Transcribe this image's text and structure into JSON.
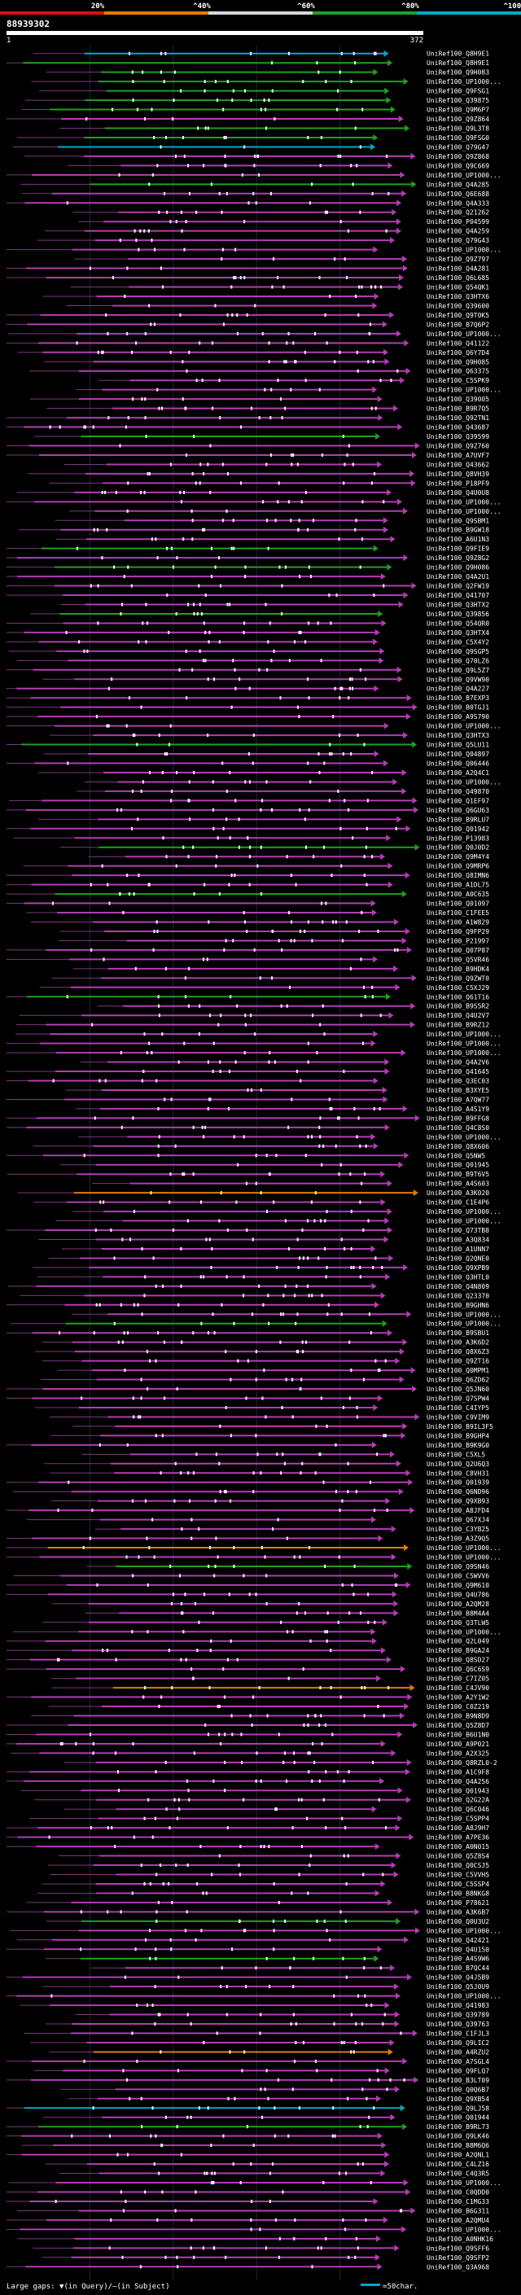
{
  "scale": {
    "labels": [
      "20%",
      "^40%",
      "^60%",
      "^80%",
      "^100%"
    ],
    "colors": [
      "#d21414",
      "#e07d00",
      "#d8d8d8",
      "#20a020",
      "#00aac8"
    ]
  },
  "query": {
    "title": "88939302",
    "start": "1",
    "end": "372"
  },
  "hits": [
    {
      "id": "UniRef100_Q8H9E1",
      "color": "#00aac8"
    },
    {
      "id": "UniRef100_Q8H9E1",
      "color": "#20a020"
    },
    {
      "id": "UniRef100_Q9H083",
      "color": "#20a020"
    },
    {
      "id": "UniRef100_UP1000...",
      "color": "#20a020"
    },
    {
      "id": "UniRef100_Q9FSG1",
      "color": "#20a020"
    },
    {
      "id": "UniRef100_Q39875",
      "color": "#20a020"
    },
    {
      "id": "UniRef100_Q9M6P7",
      "color": "#20a020"
    },
    {
      "id": "UniRef100_Q9Z864",
      "color": "#b43cb4"
    },
    {
      "id": "UniRef100_Q9L3T8",
      "color": "#20a020"
    },
    {
      "id": "UniRef100_Q9FSG0",
      "color": "#20a020"
    },
    {
      "id": "UniRef100_Q79G47",
      "color": "#00aac8"
    },
    {
      "id": "UniRef100_Q9Z868",
      "color": "#b43cb4"
    },
    {
      "id": "UniRef100_Q9C669",
      "color": "#b43cb4"
    },
    {
      "id": "UniRef100_UP1000...",
      "color": "#b43cb4"
    },
    {
      "id": "UniRef100_Q4A285",
      "color": "#20a020"
    },
    {
      "id": "UniRef100_Q6E688",
      "color": "#b43cb4"
    },
    {
      "id": "UniRef100_Q4A333",
      "color": "#b43cb4"
    },
    {
      "id": "UniRef100_Q21262",
      "color": "#b43cb4"
    },
    {
      "id": "UniRef100_P04599",
      "color": "#b43cb4"
    },
    {
      "id": "UniRef100_Q4A259",
      "color": "#b43cb4"
    },
    {
      "id": "UniRef100_Q79G43",
      "color": "#b43cb4"
    },
    {
      "id": "UniRef100_UP1000...",
      "color": "#b43cb4"
    },
    {
      "id": "UniRef100_Q9Z797",
      "color": "#b43cb4"
    },
    {
      "id": "UniRef100_Q4A281",
      "color": "#b43cb4"
    },
    {
      "id": "UniRef100_Q6L685",
      "color": "#b43cb4"
    },
    {
      "id": "UniRef100_Q54QK1",
      "color": "#b43cb4"
    },
    {
      "id": "UniRef100_Q3HTX6",
      "color": "#b43cb4"
    },
    {
      "id": "UniRef100_Q39600",
      "color": "#b43cb4"
    },
    {
      "id": "UniRef100_Q9T0K5",
      "color": "#b43cb4"
    },
    {
      "id": "UniRef100_B7Q6P2",
      "color": "#b43cb4"
    },
    {
      "id": "UniRef100_UP1000...",
      "color": "#b43cb4"
    },
    {
      "id": "UniRef100_Q41122",
      "color": "#b43cb4"
    },
    {
      "id": "UniRef100_Q6Y7D4",
      "color": "#b43cb4"
    },
    {
      "id": "UniRef100_Q9H085",
      "color": "#b43cb4"
    },
    {
      "id": "UniRef100_Q63375",
      "color": "#b43cb4"
    },
    {
      "id": "UniRef100_C5SPK9",
      "color": "#b43cb4"
    },
    {
      "id": "UniRef100_UP1000...",
      "color": "#b43cb4"
    },
    {
      "id": "UniRef100_Q39005",
      "color": "#b43cb4"
    },
    {
      "id": "UniRef100_B9R7Q5",
      "color": "#b43cb4"
    },
    {
      "id": "UniRef100_Q92TN1",
      "color": "#b43cb4"
    },
    {
      "id": "UniRef100_Q43687",
      "color": "#b43cb4"
    },
    {
      "id": "UniRef100_Q39599",
      "color": "#20a020"
    },
    {
      "id": "UniRef100_Q9Z760",
      "color": "#b43cb4"
    },
    {
      "id": "UniRef100_A7UVF7",
      "color": "#b43cb4"
    },
    {
      "id": "UniRef100_Q43662",
      "color": "#b43cb4"
    },
    {
      "id": "UniRef100_Q8VH39",
      "color": "#b43cb4"
    },
    {
      "id": "UniRef100_P18PF9",
      "color": "#b43cb4"
    },
    {
      "id": "UniRef100_Q4U0U8",
      "color": "#b43cb4"
    },
    {
      "id": "UniRef100_UP1000...",
      "color": "#b43cb4"
    },
    {
      "id": "UniRef100_UP1000...",
      "color": "#b43cb4"
    },
    {
      "id": "UniRef100_Q9SBM1",
      "color": "#b43cb4"
    },
    {
      "id": "UniRef100_B9GW18",
      "color": "#b43cb4"
    },
    {
      "id": "UniRef100_A6U1N3",
      "color": "#b43cb4"
    },
    {
      "id": "UniRef100_Q9FIE9",
      "color": "#20a020"
    },
    {
      "id": "UniRef100_Q9Z8G2",
      "color": "#b43cb4"
    },
    {
      "id": "UniRef100_Q9H086",
      "color": "#20a020"
    },
    {
      "id": "UniRef100_Q4A2U1",
      "color": "#b43cb4"
    },
    {
      "id": "UniRef100_Q2FW19",
      "color": "#b43cb4"
    },
    {
      "id": "UniRef100_Q41707",
      "color": "#b43cb4"
    },
    {
      "id": "UniRef100_Q3HTX2",
      "color": "#b43cb4"
    },
    {
      "id": "UniRef100_Q39856",
      "color": "#20a020"
    },
    {
      "id": "UniRef100_Q54QR0",
      "color": "#b43cb4"
    },
    {
      "id": "UniRef100_Q3HTX4",
      "color": "#b43cb4"
    },
    {
      "id": "UniRef100_C5X4Y2",
      "color": "#b43cb4"
    },
    {
      "id": "UniRef100_Q9SGP5",
      "color": "#b43cb4"
    },
    {
      "id": "UniRef100_Q70LZ6",
      "color": "#b43cb4"
    },
    {
      "id": "UniRef100_Q9L5Z7",
      "color": "#b43cb4"
    },
    {
      "id": "UniRef100_Q9VW90",
      "color": "#b43cb4"
    },
    {
      "id": "UniRef100_Q4A227",
      "color": "#b43cb4"
    },
    {
      "id": "UniRef100_B7EXP3",
      "color": "#b43cb4"
    },
    {
      "id": "UniRef100_B0TGJ1",
      "color": "#b43cb4"
    },
    {
      "id": "UniRef100_A9S790",
      "color": "#b43cb4"
    },
    {
      "id": "UniRef100_UP1000...",
      "color": "#b43cb4"
    },
    {
      "id": "UniRef100_Q3HTX3",
      "color": "#b43cb4"
    },
    {
      "id": "UniRef100_Q5LU11",
      "color": "#20a020"
    },
    {
      "id": "UniRef100_Q04897",
      "color": "#b43cb4"
    },
    {
      "id": "UniRef100_Q06446",
      "color": "#b43cb4"
    },
    {
      "id": "UniRef100_A2Q4C1",
      "color": "#b43cb4"
    },
    {
      "id": "UniRef100_UP1000...",
      "color": "#b43cb4"
    },
    {
      "id": "UniRef100_Q49870",
      "color": "#b43cb4"
    },
    {
      "id": "UniRef100_Q1EF97",
      "color": "#b43cb4"
    },
    {
      "id": "UniRef100_Q6GU63",
      "color": "#b43cb4"
    },
    {
      "id": "UniRef100_B9RLU7",
      "color": "#b43cb4"
    },
    {
      "id": "UniRef100_Q01942",
      "color": "#b43cb4"
    },
    {
      "id": "UniRef100_P13983",
      "color": "#b43cb4"
    },
    {
      "id": "UniRef100_Q0J0D2",
      "color": "#20a020"
    },
    {
      "id": "UniRef100_Q9M4Y4",
      "color": "#b43cb4"
    },
    {
      "id": "UniRef100_Q9MRP6",
      "color": "#b43cb4"
    },
    {
      "id": "UniRef100_Q8IMN6",
      "color": "#b43cb4"
    },
    {
      "id": "UniRef100_A1DL75",
      "color": "#b43cb4"
    },
    {
      "id": "UniRef100_A0C635",
      "color": "#20a020"
    },
    {
      "id": "UniRef100_Q01097",
      "color": "#b43cb4"
    },
    {
      "id": "UniRef100_C1FEE5",
      "color": "#b43cb4"
    },
    {
      "id": "UniRef100_A1W829",
      "color": "#b43cb4"
    },
    {
      "id": "UniRef100_Q9FP29",
      "color": "#b43cb4"
    },
    {
      "id": "UniRef100_P21997",
      "color": "#b43cb4"
    },
    {
      "id": "UniRef100_Q07P87",
      "color": "#b43cb4"
    },
    {
      "id": "UniRef100_Q5VR46",
      "color": "#b43cb4"
    },
    {
      "id": "UniRef100_B9HDK4",
      "color": "#b43cb4"
    },
    {
      "id": "UniRef100_Q9ZWT0",
      "color": "#b43cb4"
    },
    {
      "id": "UniRef100_C5XJ29",
      "color": "#b43cb4"
    },
    {
      "id": "UniRef100_Q61T16",
      "color": "#20a020"
    },
    {
      "id": "UniRef100_B9S5R2",
      "color": "#b43cb4"
    },
    {
      "id": "UniRef100_Q4U2V7",
      "color": "#b43cb4"
    },
    {
      "id": "UniRef100_B9RZ12",
      "color": "#b43cb4"
    },
    {
      "id": "UniRef100_UP1000...",
      "color": "#b43cb4"
    },
    {
      "id": "UniRef100_UP1000...",
      "color": "#b43cb4"
    },
    {
      "id": "UniRef100_UP1000...",
      "color": "#b43cb4"
    },
    {
      "id": "UniRef100_Q4A2V6",
      "color": "#b43cb4"
    },
    {
      "id": "UniRef100_Q41645",
      "color": "#b43cb4"
    },
    {
      "id": "UniRef100_Q3EC03",
      "color": "#b43cb4"
    },
    {
      "id": "UniRef100_B3XYE5",
      "color": "#b43cb4"
    },
    {
      "id": "UniRef100_A7QW77",
      "color": "#b43cb4"
    },
    {
      "id": "UniRef100_A4S1Y9",
      "color": "#b43cb4"
    },
    {
      "id": "UniRef100_B9FFG8",
      "color": "#b43cb4"
    },
    {
      "id": "UniRef100_Q4C8S0",
      "color": "#b43cb4"
    },
    {
      "id": "UniRef100_UP1000...",
      "color": "#b43cb4"
    },
    {
      "id": "UniRef100_Q8X606",
      "color": "#b43cb4"
    },
    {
      "id": "UniRef100_Q5NW5",
      "color": "#b43cb4"
    },
    {
      "id": "UniRef100_Q01945",
      "color": "#b43cb4"
    },
    {
      "id": "UniRef100_B9T6V5",
      "color": "#b43cb4"
    },
    {
      "id": "UniRef100_A4S603",
      "color": "#b43cb4"
    },
    {
      "id": "UniRef100_A3K020",
      "color": "#e07d00"
    },
    {
      "id": "UniRef100_C1E4P6",
      "color": "#b43cb4"
    },
    {
      "id": "UniRef100_UP1000...",
      "color": "#b43cb4"
    },
    {
      "id": "UniRef100_UP1000...",
      "color": "#b43cb4"
    },
    {
      "id": "UniRef100_Q73TB8",
      "color": "#b43cb4"
    },
    {
      "id": "UniRef100_A3Q834",
      "color": "#b43cb4"
    },
    {
      "id": "UniRef100_A1UNN7",
      "color": "#b43cb4"
    },
    {
      "id": "UniRef100_Q2QNE0",
      "color": "#b43cb4"
    },
    {
      "id": "UniRef100_Q9XPB9",
      "color": "#b43cb4"
    },
    {
      "id": "UniRef100_Q3HTL0",
      "color": "#b43cb4"
    },
    {
      "id": "UniRef100_Q4N809",
      "color": "#b43cb4"
    },
    {
      "id": "UniRef100_Q23370",
      "color": "#b43cb4"
    },
    {
      "id": "UniRef100_B9GHN6",
      "color": "#b43cb4"
    },
    {
      "id": "UniRef100_UP1000...",
      "color": "#b43cb4"
    },
    {
      "id": "UniRef100_UP1000...",
      "color": "#20a020"
    },
    {
      "id": "UniRef100_B9SBU1",
      "color": "#b43cb4"
    },
    {
      "id": "UniRef100_A3K6D2",
      "color": "#b43cb4"
    },
    {
      "id": "UniRef100_Q8X6Z3",
      "color": "#b43cb4"
    },
    {
      "id": "UniRef100_Q9ZT16",
      "color": "#b43cb4"
    },
    {
      "id": "UniRef100_Q0MPM1",
      "color": "#b43cb4"
    },
    {
      "id": "UniRef100_Q6ZD62",
      "color": "#b43cb4"
    },
    {
      "id": "UniRef100_Q5JN60",
      "color": "#b43cb4"
    },
    {
      "id": "UniRef100_Q7SPW4",
      "color": "#b43cb4"
    },
    {
      "id": "UniRef100_C4IYP5",
      "color": "#b43cb4"
    },
    {
      "id": "UniRef100_C9VIM9",
      "color": "#b43cb4"
    },
    {
      "id": "UniRef100_B9IL3F5",
      "color": "#b43cb4"
    },
    {
      "id": "UniRef100_B9GHP4",
      "color": "#b43cb4"
    },
    {
      "id": "UniRef100_B9K9G0",
      "color": "#b43cb4"
    },
    {
      "id": "UniRef100_C5XL5",
      "color": "#b43cb4"
    },
    {
      "id": "UniRef100_Q2U6Q3",
      "color": "#b43cb4"
    },
    {
      "id": "UniRef100_C8VH31",
      "color": "#b43cb4"
    },
    {
      "id": "UniRef100_Q01939",
      "color": "#b43cb4"
    },
    {
      "id": "UniRef100_Q6ND96",
      "color": "#b43cb4"
    },
    {
      "id": "UniRef100_Q9XB93",
      "color": "#b43cb4"
    },
    {
      "id": "UniRef100_A8JFD4",
      "color": "#b43cb4"
    },
    {
      "id": "UniRef100_Q67XJ4",
      "color": "#b43cb4"
    },
    {
      "id": "UniRef100_C3YB25",
      "color": "#b43cb4"
    },
    {
      "id": "UniRef100_A3Z9Q5",
      "color": "#b43cb4"
    },
    {
      "id": "UniRef100_UP1000...",
      "color": "#e07d00"
    },
    {
      "id": "UniRef100_UP1000...",
      "color": "#b43cb4"
    },
    {
      "id": "UniRef100_Q9SN46",
      "color": "#20a020"
    },
    {
      "id": "UniRef100_C5WVV6",
      "color": "#b43cb4"
    },
    {
      "id": "UniRef100_Q9M610",
      "color": "#b43cb4"
    },
    {
      "id": "UniRef100_Q4U786",
      "color": "#b43cb4"
    },
    {
      "id": "UniRef100_A2QM28",
      "color": "#b43cb4"
    },
    {
      "id": "UniRef100_B8M4A4",
      "color": "#b43cb4"
    },
    {
      "id": "UniRef100_Q3TLW5",
      "color": "#b43cb4"
    },
    {
      "id": "UniRef100_UP1000...",
      "color": "#b43cb4"
    },
    {
      "id": "UniRef100_Q2L049",
      "color": "#b43cb4"
    },
    {
      "id": "UniRef100_B9GA24",
      "color": "#b43cb4"
    },
    {
      "id": "UniRef100_Q8SD27",
      "color": "#b43cb4"
    },
    {
      "id": "UniRef100_Q6C6S9",
      "color": "#b43cb4"
    },
    {
      "id": "UniRef100_C7IZ05",
      "color": "#b43cb4"
    },
    {
      "id": "UniRef100_C4JV90",
      "color": "#e07d00"
    },
    {
      "id": "UniRef100_A2Y1W2",
      "color": "#b43cb4"
    },
    {
      "id": "UniRef100_C0Z219",
      "color": "#b43cb4"
    },
    {
      "id": "UniRef100_B9N8D9",
      "color": "#b43cb4"
    },
    {
      "id": "UniRef100_Q5Z8D7",
      "color": "#b43cb4"
    },
    {
      "id": "UniRef100_B6U1N0",
      "color": "#b43cb4"
    },
    {
      "id": "UniRef100_A9P021",
      "color": "#b43cb4"
    },
    {
      "id": "UniRef100_A2X325",
      "color": "#b43cb4"
    },
    {
      "id": "UniRef100_Q8RZL0-2",
      "color": "#b43cb4"
    },
    {
      "id": "UniRef100_A1C9F8",
      "color": "#b43cb4"
    },
    {
      "id": "UniRef100_Q4A256",
      "color": "#b43cb4"
    },
    {
      "id": "UniRef100_Q01943",
      "color": "#b43cb4"
    },
    {
      "id": "UniRef100_Q2G22A",
      "color": "#b43cb4"
    },
    {
      "id": "UniRef100_Q6C046",
      "color": "#b43cb4"
    },
    {
      "id": "UniRef100_C5SPP4",
      "color": "#b43cb4"
    },
    {
      "id": "UniRef100_A8J9H7",
      "color": "#b43cb4"
    },
    {
      "id": "UniRef100_A7PE36",
      "color": "#b43cb4"
    },
    {
      "id": "UniRef100_A0N015",
      "color": "#b43cb4"
    },
    {
      "id": "UniRef100_Q5Z8S4",
      "color": "#b43cb4"
    },
    {
      "id": "UniRef100_Q0CSJ5",
      "color": "#b43cb4"
    },
    {
      "id": "UniRef100_C5VVH5",
      "color": "#b43cb4"
    },
    {
      "id": "UniRef100_C5SSP4",
      "color": "#b43cb4"
    },
    {
      "id": "UniRef100_B8NKG8",
      "color": "#b43cb4"
    },
    {
      "id": "UniRef100_P78621",
      "color": "#b43cb4"
    },
    {
      "id": "UniRef100_A3K6B7",
      "color": "#b43cb4"
    },
    {
      "id": "UniRef100_Q0U3U2",
      "color": "#20a020"
    },
    {
      "id": "UniRef100_UP1000...",
      "color": "#b43cb4"
    },
    {
      "id": "UniRef100_Q42421",
      "color": "#b43cb4"
    },
    {
      "id": "UniRef100_Q4U150",
      "color": "#b43cb4"
    },
    {
      "id": "UniRef100_A4S9W6",
      "color": "#20a020"
    },
    {
      "id": "UniRef100_B7QC44",
      "color": "#b43cb4"
    },
    {
      "id": "UniRef100_Q4J5B9",
      "color": "#b43cb4"
    },
    {
      "id": "UniRef100_Q5J0U9",
      "color": "#b43cb4"
    },
    {
      "id": "UniRef100_UP1000...",
      "color": "#b43cb4"
    },
    {
      "id": "UniRef100_Q41983",
      "color": "#b43cb4"
    },
    {
      "id": "UniRef100_Q39789",
      "color": "#b43cb4"
    },
    {
      "id": "UniRef100_Q39763",
      "color": "#b43cb4"
    },
    {
      "id": "UniRef100_C1FJL3",
      "color": "#b43cb4"
    },
    {
      "id": "UniRef100_Q9LIC2",
      "color": "#b43cb4"
    },
    {
      "id": "UniRef100_A4RZU2",
      "color": "#e07d00"
    },
    {
      "id": "UniRef100_A7SGL4",
      "color": "#b43cb4"
    },
    {
      "id": "UniRef100_Q9FLQ7",
      "color": "#b43cb4"
    },
    {
      "id": "UniRef100_B3LT09",
      "color": "#b43cb4"
    },
    {
      "id": "UniRef100_Q0Q6B7",
      "color": "#b43cb4"
    },
    {
      "id": "UniRef100_Q9XB54",
      "color": "#b43cb4"
    },
    {
      "id": "UniRef100_Q9LJ58",
      "color": "#00aac8"
    },
    {
      "id": "UniRef100_Q01944",
      "color": "#b43cb4"
    },
    {
      "id": "UniRef100_B9RL73",
      "color": "#20a020"
    },
    {
      "id": "UniRef100_Q9LK46",
      "color": "#b43cb4"
    },
    {
      "id": "UniRef100_B8M6Q6",
      "color": "#b43cb4"
    },
    {
      "id": "UniRef100_A2QNL1",
      "color": "#b43cb4"
    },
    {
      "id": "UniRef100_C4LZ16",
      "color": "#b43cb4"
    },
    {
      "id": "UniRef100_C4Q3R5",
      "color": "#b43cb4"
    },
    {
      "id": "UniRef100_UP1000...",
      "color": "#b43cb4"
    },
    {
      "id": "UniRef100_C0QDD0",
      "color": "#b43cb4"
    },
    {
      "id": "UniRef100_C1MG33",
      "color": "#b43cb4"
    },
    {
      "id": "UniRef100_B6G311",
      "color": "#b43cb4"
    },
    {
      "id": "UniRef100_A2QMU4",
      "color": "#b43cb4"
    },
    {
      "id": "UniRef100_UP1000...",
      "color": "#b43cb4"
    },
    {
      "id": "UniRef100_A0NHK16",
      "color": "#b43cb4"
    },
    {
      "id": "UniRef100_Q9SFF6",
      "color": "#b43cb4"
    },
    {
      "id": "UniRef100_Q9SFP2",
      "color": "#b43cb4"
    },
    {
      "id": "UniRef100_Q3A968",
      "color": "#b43cb4"
    }
  ],
  "legend": {
    "gaps_text": "Large gaps: ▼(in Query)/—(in Subject)",
    "scale_text": "=50char."
  }
}
